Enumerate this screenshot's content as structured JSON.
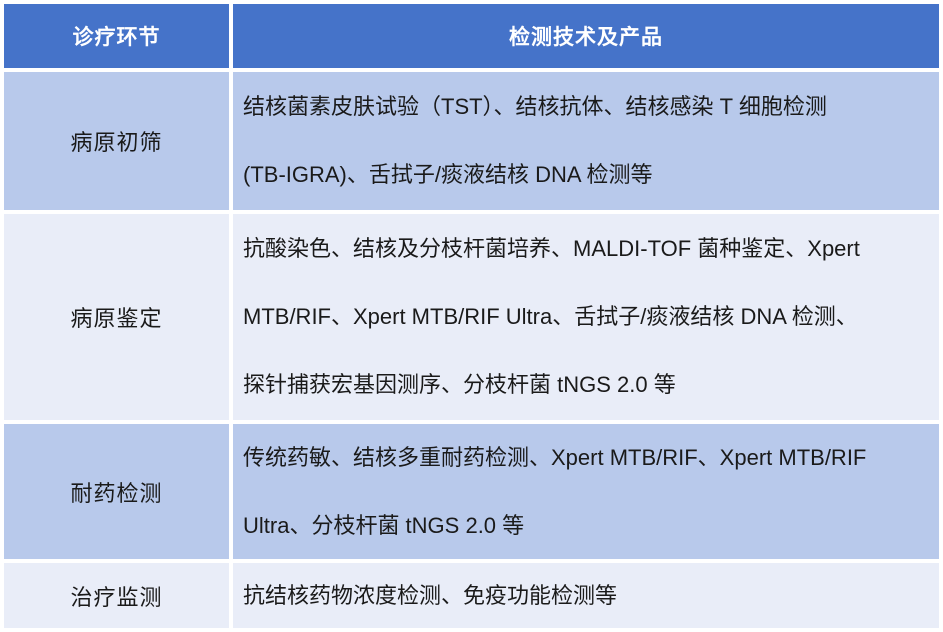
{
  "table": {
    "title_semantic": "tuberculosis-diagnostic-technologies-table",
    "header": {
      "stage_col": "诊疗环节",
      "tech_col": "检测技术及产品"
    },
    "rows": [
      {
        "stage": "病原初筛",
        "lines": [
          "结核菌素皮肤试验（TST）、结核抗体、结核感染 T 细胞检测",
          "(TB-IGRA)、舌拭子/痰液结核 DNA 检测等"
        ]
      },
      {
        "stage": "病原鉴定",
        "lines": [
          "抗酸染色、结核及分枝杆菌培养、MALDI-TOF 菌种鉴定、Xpert",
          "MTB/RIF、Xpert MTB/RIF Ultra、舌拭子/痰液结核 DNA 检测、",
          "探针捕获宏基因测序、分枝杆菌 tNGS 2.0 等"
        ]
      },
      {
        "stage": "耐药检测",
        "lines": [
          "传统药敏、结核多重耐药检测、Xpert MTB/RIF、Xpert MTB/RIF",
          "Ultra、分枝杆菌 tNGS 2.0 等"
        ]
      },
      {
        "stage": "治疗监测",
        "lines": [
          "抗结核药物浓度检测、免疫功能检测等"
        ]
      }
    ],
    "colors": {
      "header_bg": "#4573C9",
      "band_light": "#B8C9EB",
      "band_lighter": "#E9EDF8",
      "gridline": "#FFFFFF",
      "text": "#1A1A1A",
      "header_text": "#FFFFFF"
    }
  }
}
